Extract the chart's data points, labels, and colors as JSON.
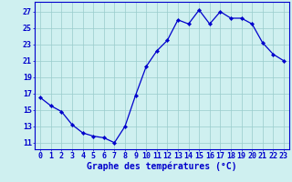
{
  "hours": [
    0,
    1,
    2,
    3,
    4,
    5,
    6,
    7,
    8,
    9,
    10,
    11,
    12,
    13,
    14,
    15,
    16,
    17,
    18,
    19,
    20,
    21,
    22,
    23
  ],
  "temps": [
    16.5,
    15.5,
    14.8,
    13.2,
    12.2,
    11.8,
    11.6,
    11.0,
    13.0,
    16.8,
    20.3,
    22.2,
    23.5,
    26.0,
    25.5,
    27.2,
    25.5,
    27.0,
    26.2,
    26.2,
    25.5,
    23.2,
    21.8,
    21.0
  ],
  "bg_color": "#cff0f0",
  "line_color": "#0000cc",
  "marker_color": "#0000cc",
  "grid_color": "#99cccc",
  "xlabel": "Graphe des températures (°C)",
  "ylabel_ticks": [
    11,
    13,
    15,
    17,
    19,
    21,
    23,
    25,
    27
  ],
  "ylim": [
    10.2,
    28.2
  ],
  "xlim": [
    -0.5,
    23.5
  ],
  "xlabel_color": "#0000cc",
  "tick_label_color": "#0000cc",
  "axis_label_fontsize": 7.0,
  "tick_fontsize": 6.0,
  "border_color": "#0000cc",
  "linewidth": 0.9,
  "markersize": 2.2
}
